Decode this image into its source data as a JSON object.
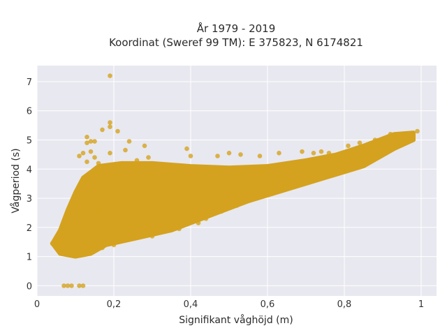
{
  "chart_data": {
    "type": "scatter",
    "title_lines": [
      "År 1979 - 2019",
      "Koordinat (Sweref 99 TM): E 375823, N 6174821"
    ],
    "xlabel": "Signifikant våghöjd (m)",
    "ylabel": "Vågperiod (s)",
    "xlim": [
      0,
      1.04
    ],
    "ylim": [
      -0.35,
      7.55
    ],
    "x_ticks": [
      0,
      0.2,
      0.4,
      0.6,
      0.8,
      1
    ],
    "x_tick_labels": [
      "0",
      "0,2",
      "0,4",
      "0,6",
      "0,8",
      "1"
    ],
    "y_ticks": [
      0,
      1,
      2,
      3,
      4,
      5,
      6,
      7
    ],
    "y_tick_labels": [
      "0",
      "1",
      "2",
      "3",
      "4",
      "5",
      "6",
      "7"
    ],
    "grid": true,
    "point_color": "#D4A21E",
    "plot_background": "#E8E8F0",
    "dense_cloud": [
      [
        0.04,
        1.45
      ],
      [
        0.06,
        1.1
      ],
      [
        0.1,
        1.0
      ],
      [
        0.14,
        1.1
      ],
      [
        0.18,
        1.4
      ],
      [
        0.25,
        1.6
      ],
      [
        0.35,
        1.9
      ],
      [
        0.45,
        2.4
      ],
      [
        0.55,
        2.9
      ],
      [
        0.65,
        3.3
      ],
      [
        0.75,
        3.7
      ],
      [
        0.85,
        4.1
      ],
      [
        0.93,
        4.7
      ],
      [
        0.98,
        5.0
      ],
      [
        0.98,
        5.25
      ],
      [
        0.93,
        5.2
      ],
      [
        0.85,
        4.8
      ],
      [
        0.78,
        4.5
      ],
      [
        0.7,
        4.3
      ],
      [
        0.6,
        4.1
      ],
      [
        0.5,
        4.05
      ],
      [
        0.4,
        4.1
      ],
      [
        0.3,
        4.2
      ],
      [
        0.22,
        4.2
      ],
      [
        0.16,
        4.1
      ],
      [
        0.12,
        3.7
      ],
      [
        0.1,
        3.2
      ],
      [
        0.08,
        2.6
      ],
      [
        0.06,
        1.9
      ]
    ],
    "points": [
      [
        0.19,
        7.2
      ],
      [
        0.19,
        5.6
      ],
      [
        0.17,
        5.35
      ],
      [
        0.19,
        5.45
      ],
      [
        0.21,
        5.3
      ],
      [
        0.13,
        5.1
      ],
      [
        0.14,
        4.95
      ],
      [
        0.13,
        4.9
      ],
      [
        0.15,
        4.95
      ],
      [
        0.24,
        4.95
      ],
      [
        0.12,
        4.55
      ],
      [
        0.14,
        4.6
      ],
      [
        0.19,
        4.55
      ],
      [
        0.11,
        4.45
      ],
      [
        0.15,
        4.4
      ],
      [
        0.13,
        4.25
      ],
      [
        0.23,
        4.65
      ],
      [
        0.16,
        4.2
      ],
      [
        0.26,
        4.3
      ],
      [
        0.29,
        4.4
      ],
      [
        0.28,
        4.8
      ],
      [
        0.39,
        4.7
      ],
      [
        0.4,
        4.45
      ],
      [
        0.47,
        4.45
      ],
      [
        0.5,
        4.55
      ],
      [
        0.53,
        4.5
      ],
      [
        0.58,
        4.45
      ],
      [
        0.63,
        4.55
      ],
      [
        0.69,
        4.6
      ],
      [
        0.72,
        4.55
      ],
      [
        0.74,
        4.6
      ],
      [
        0.76,
        4.55
      ],
      [
        0.81,
        4.8
      ],
      [
        0.84,
        4.9
      ],
      [
        0.88,
        5.0
      ],
      [
        0.92,
        5.2
      ],
      [
        0.95,
        5.2
      ],
      [
        0.97,
        5.2
      ],
      [
        0.99,
        5.3
      ],
      [
        0.09,
        2.8
      ],
      [
        0.08,
        2.4
      ],
      [
        0.07,
        1.6
      ],
      [
        0.05,
        1.45
      ],
      [
        0.04,
        1.45
      ],
      [
        0.06,
        1.3
      ],
      [
        0.07,
        0.0
      ],
      [
        0.08,
        0.0
      ],
      [
        0.09,
        0.0
      ],
      [
        0.11,
        0.0
      ],
      [
        0.12,
        0.0
      ],
      [
        0.1,
        1.1
      ],
      [
        0.12,
        1.15
      ],
      [
        0.14,
        1.15
      ],
      [
        0.17,
        1.3
      ],
      [
        0.2,
        1.4
      ],
      [
        0.3,
        1.7
      ],
      [
        0.37,
        1.95
      ],
      [
        0.42,
        2.15
      ],
      [
        0.44,
        2.3
      ],
      [
        0.48,
        2.55
      ],
      [
        0.52,
        2.75
      ],
      [
        0.61,
        3.15
      ],
      [
        0.66,
        3.35
      ],
      [
        0.71,
        3.55
      ],
      [
        0.79,
        3.9
      ],
      [
        0.86,
        4.2
      ],
      [
        0.91,
        4.6
      ],
      [
        0.96,
        4.9
      ],
      [
        0.65,
        3.7
      ],
      [
        0.55,
        3.5
      ],
      [
        0.46,
        3.2
      ],
      [
        0.36,
        2.3
      ],
      [
        0.33,
        2.5
      ],
      [
        0.21,
        3.4
      ],
      [
        0.27,
        2.8
      ],
      [
        0.13,
        2.2
      ],
      [
        0.16,
        2.6
      ],
      [
        0.24,
        2.1
      ],
      [
        0.41,
        3.6
      ],
      [
        0.59,
        3.9
      ]
    ]
  }
}
